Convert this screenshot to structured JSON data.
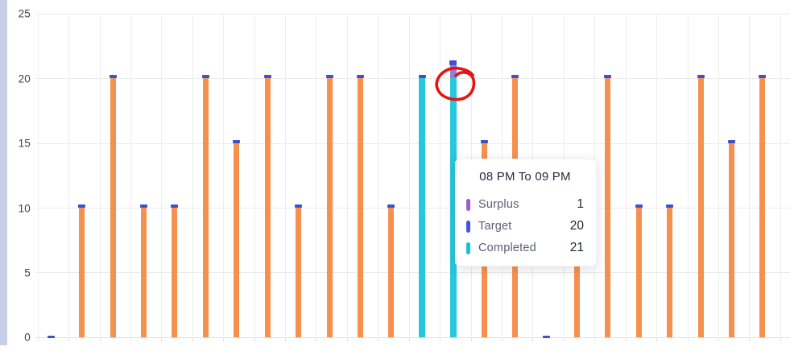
{
  "chart_data": {
    "type": "bar",
    "title": "",
    "xlabel": "",
    "ylabel": "",
    "ylim": [
      0,
      25
    ],
    "yticks": [
      0,
      5,
      10,
      15,
      20,
      25
    ],
    "grid": true,
    "x_tick_labels_visible": false,
    "legend_entries": [
      "Surplus",
      "Target",
      "Completed"
    ],
    "legend_position": "tooltip-only",
    "bars": [
      {
        "target": 0
      },
      {
        "target": 10
      },
      {
        "target": 20
      },
      {
        "target": 10
      },
      {
        "target": 10
      },
      {
        "target": 20
      },
      {
        "target": 15
      },
      {
        "target": 20
      },
      {
        "target": 10
      },
      {
        "target": 20
      },
      {
        "target": 20
      },
      {
        "target": 10
      },
      {
        "target": 20,
        "completed": 20
      },
      {
        "target": 20,
        "completed": 21,
        "surplus": 1,
        "hovered": true,
        "hover_label": "08 PM To 09 PM"
      },
      {
        "target": 15
      },
      {
        "target": 20
      },
      {
        "target": 0
      },
      {
        "target": 10,
        "top_occluded_by_tooltip": true
      },
      {
        "target": 20
      },
      {
        "target": 10
      },
      {
        "target": 10
      },
      {
        "target": 20
      },
      {
        "target": 15
      },
      {
        "target": 20
      }
    ],
    "hovered_index": 13,
    "colors": {
      "target_bar": "#f6904e",
      "target_cap": "#4050c8",
      "completed_bar": "#25c8dc",
      "surplus_segment": "#9b7bd8",
      "gridline": "#ececec",
      "axis_text": "#3b4055"
    }
  },
  "tooltip": {
    "title": "08 PM To 09 PM",
    "rows": [
      {
        "label": "Surplus",
        "value": "1",
        "color": "#9d5bd2"
      },
      {
        "label": "Target",
        "value": "20",
        "color": "#4353e0"
      },
      {
        "label": "Completed",
        "value": "21",
        "color": "#1fbcd2"
      }
    ]
  },
  "annotation": {
    "type": "hand-drawn-circle",
    "color": "#e41412",
    "note": "red freehand circle around top of hovered completed bar"
  }
}
